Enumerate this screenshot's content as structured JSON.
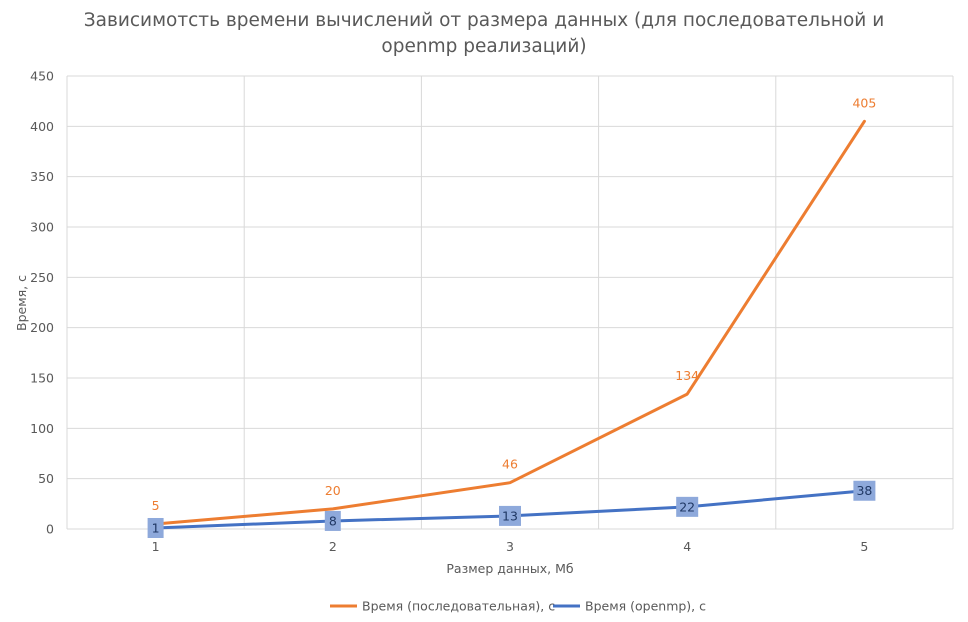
{
  "chart_data": {
    "type": "line",
    "title_lines": [
      "Зависимотсть времени вычислений от размера данных (для последовательной и",
      "openmp реализаций)"
    ],
    "xlabel": "Размер данных, Мб",
    "ylabel": "Время, с",
    "categories": [
      "1",
      "2",
      "3",
      "4",
      "5"
    ],
    "ylim": [
      0,
      450
    ],
    "yticks": [
      "0",
      "50",
      "100",
      "150",
      "200",
      "250",
      "300",
      "350",
      "400",
      "450"
    ],
    "grid": true,
    "legend_position": "bottom",
    "series": [
      {
        "name": "Время (последовательная), с",
        "values": [
          5,
          20,
          46,
          134,
          405
        ],
        "labels": [
          "5",
          "20",
          "46",
          "134",
          "405"
        ],
        "color": "#ED7D31"
      },
      {
        "name": "Время (openmp), с",
        "values": [
          1,
          8,
          13,
          22,
          38
        ],
        "labels": [
          "1",
          "8",
          "13",
          "22",
          "38"
        ],
        "color": "#4472C4"
      }
    ]
  }
}
